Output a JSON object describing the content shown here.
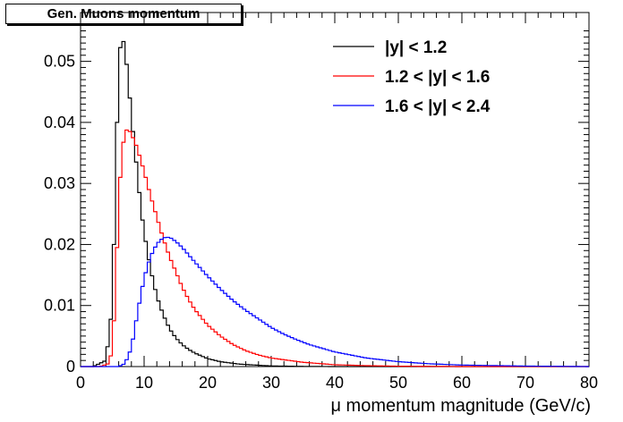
{
  "chart_data": {
    "type": "line",
    "title": "Gen. Muons momentum",
    "xlabel": "μ momentum magnitude (GeV/c)",
    "ylabel": "",
    "xlim": [
      0,
      80
    ],
    "ylim": [
      0,
      0.058
    ],
    "x_ticks": [
      "0",
      "10",
      "20",
      "30",
      "40",
      "50",
      "60",
      "70",
      "80"
    ],
    "y_ticks": [
      "0",
      "0.01",
      "0.02",
      "0.03",
      "0.04",
      "0.05"
    ],
    "grid": false,
    "legend_position": "top-right",
    "series": [
      {
        "name": "|y| < 1.2",
        "color": "#000000",
        "x": [
          2,
          4,
          5,
          5.5,
          6,
          6.5,
          7,
          7.5,
          8,
          8.5,
          9,
          9.5,
          10,
          11,
          12,
          13,
          14,
          15,
          16,
          17,
          18,
          20,
          22,
          25,
          30,
          35,
          40
        ],
        "y": [
          0,
          0.001,
          0.01,
          0.03,
          0.05,
          0.0545,
          0.052,
          0.047,
          0.041,
          0.036,
          0.031,
          0.026,
          0.022,
          0.016,
          0.0115,
          0.0085,
          0.0062,
          0.0047,
          0.0036,
          0.0028,
          0.0022,
          0.0013,
          0.0008,
          0.0004,
          0.0001,
          3e-05,
          0
        ]
      },
      {
        "name": "1.2 < |y| < 1.6",
        "color": "#ff0000",
        "x": [
          3,
          4.5,
          5,
          5.5,
          6,
          6.5,
          7,
          7.5,
          8,
          8.5,
          9,
          10,
          11,
          12,
          13,
          14,
          15,
          16,
          17,
          18,
          20,
          22,
          24,
          26,
          28,
          30,
          35,
          40,
          45,
          50,
          60
        ],
        "y": [
          0,
          0.0005,
          0.003,
          0.012,
          0.027,
          0.035,
          0.0385,
          0.039,
          0.038,
          0.037,
          0.0355,
          0.032,
          0.028,
          0.0245,
          0.021,
          0.018,
          0.0155,
          0.013,
          0.011,
          0.0093,
          0.0068,
          0.005,
          0.0036,
          0.0026,
          0.0019,
          0.0014,
          0.0007,
          0.0003,
          0.00015,
          6e-05,
          0
        ]
      },
      {
        "name": "1.6 < |y| < 2.4",
        "color": "#0000ff",
        "x": [
          6,
          7,
          8,
          9,
          10,
          11,
          12,
          13,
          14,
          15,
          16,
          17,
          18,
          20,
          22,
          24,
          26,
          28,
          30,
          32,
          34,
          36,
          38,
          40,
          45,
          50,
          55,
          60,
          70,
          80
        ],
        "y": [
          0,
          0.0005,
          0.003,
          0.009,
          0.0145,
          0.018,
          0.0201,
          0.0211,
          0.0212,
          0.0205,
          0.0195,
          0.0183,
          0.0171,
          0.0148,
          0.0127,
          0.0108,
          0.0092,
          0.0078,
          0.0064,
          0.0053,
          0.0044,
          0.0036,
          0.003,
          0.0024,
          0.0014,
          0.0008,
          0.00045,
          0.00025,
          8e-05,
          0
        ]
      }
    ]
  }
}
